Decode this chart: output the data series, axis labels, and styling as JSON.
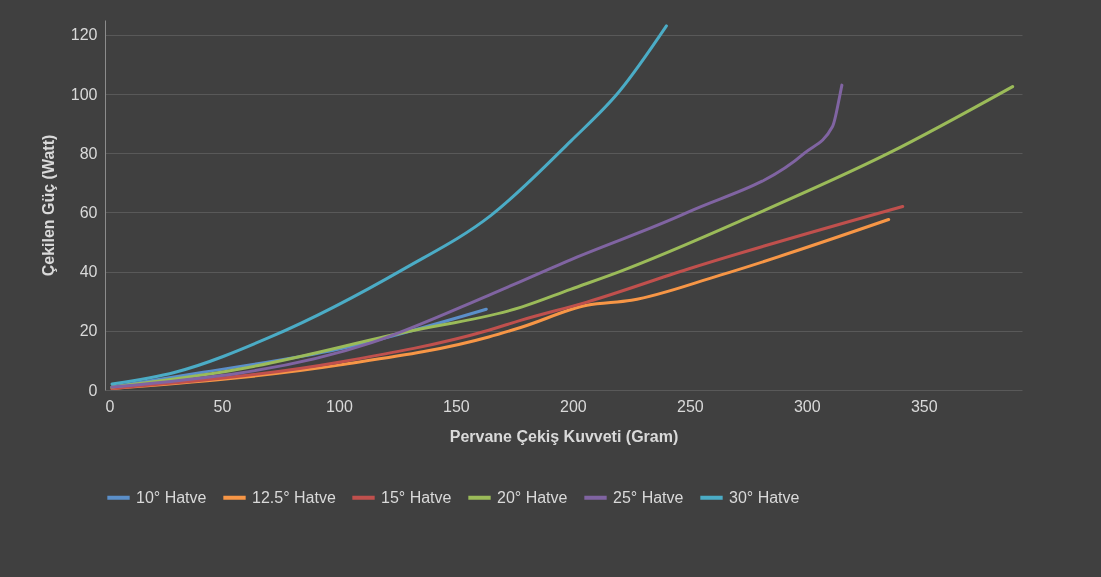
{
  "chart_data": {
    "type": "line",
    "xlabel": "Pervane Çekiş Kuvveti (Gram)",
    "ylabel": "Çekilen Güç (Watt)",
    "xlim": [
      0,
      392
    ],
    "xticks": [
      0,
      50,
      100,
      150,
      200,
      250,
      300,
      350
    ],
    "ylim": [
      0,
      125
    ],
    "yticks": [
      0,
      20,
      40,
      60,
      80,
      100,
      120
    ],
    "grid": "y",
    "legend": "bottom",
    "marker": "none",
    "line_style": "solid",
    "series": [
      {
        "name": "10° Hatve",
        "color": "#5b8fc9",
        "x": [
          3,
          42,
          100,
          163
        ],
        "values": [
          1,
          6,
          13.8,
          27.3
        ]
      },
      {
        "name": "12.5° Hatve",
        "color": "#f79646",
        "x": [
          3,
          100,
          164,
          178,
          206,
          225,
          263,
          335
        ],
        "values": [
          0.5,
          8.4,
          17.9,
          21.2,
          28.6,
          30.3,
          38.8,
          57.6
        ]
      },
      {
        "name": "15° Hatve",
        "color": "#c0504d",
        "x": [
          3,
          100,
          164,
          178,
          206,
          249,
          341
        ],
        "values": [
          0.5,
          9.4,
          20.2,
          23.6,
          29.7,
          40.8,
          62
        ]
      },
      {
        "name": "20° Hatve",
        "color": "#9bbb59",
        "x": [
          3,
          57,
          128,
          178,
          199,
          220,
          277,
          335,
          388
        ],
        "values": [
          1,
          7,
          19.5,
          28,
          34,
          40,
          59,
          80,
          102.5
        ]
      },
      {
        "name": "25° Hatve",
        "color": "#8064a2",
        "x": [
          3,
          114,
          164,
          199,
          249,
          299,
          311,
          314,
          315
        ],
        "values": [
          1,
          16,
          32,
          44,
          60,
          80,
          89,
          99,
          103
        ]
      },
      {
        "name": "30° Hatve",
        "color": "#4bacc6",
        "x": [
          3,
          30,
          71,
          128,
          165,
          199,
          220,
          240
        ],
        "values": [
          2,
          6,
          18,
          41,
          59,
          84,
          101,
          123
        ]
      }
    ]
  }
}
